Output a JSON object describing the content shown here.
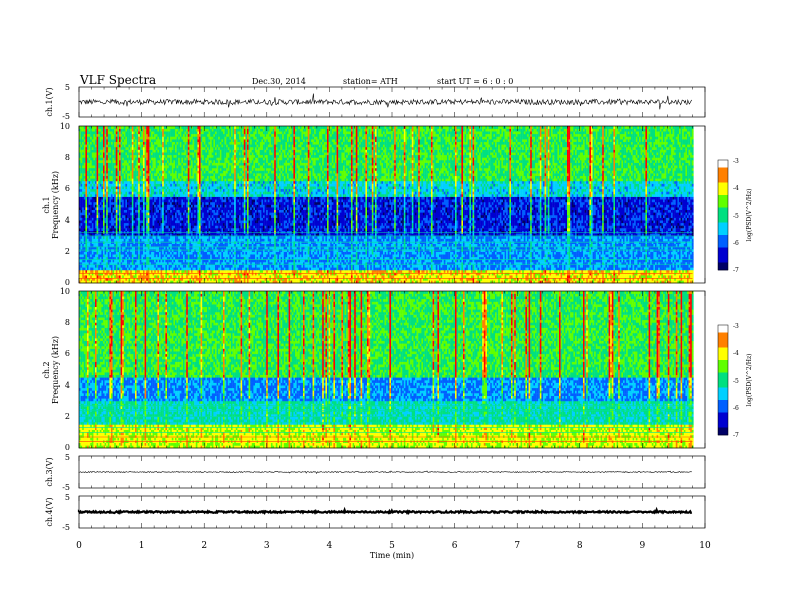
{
  "header": {
    "title": "VLF  Spectra",
    "date": "Dec.30, 2014",
    "station": "station= ATH",
    "start_ut": "start  UT  =    6  : 0  : 0"
  },
  "chart_data": [
    {
      "type": "line",
      "panel": "ch1-waveform",
      "ylabel": "ch.1(V)",
      "yticks": [
        "5",
        "-5"
      ],
      "ylim": [
        -5,
        5
      ],
      "xlim": [
        0,
        10
      ],
      "level": 0,
      "amplitude": 0.9,
      "data_end": 9.8
    },
    {
      "type": "heatmap",
      "panel": "ch1-spectrogram",
      "ylabel": "ch.1\nFrequency  (kHz)",
      "ylabel_lines": [
        "ch.1",
        "Frequency  (kHz)"
      ],
      "yticks": [
        "0",
        "2",
        "4",
        "6",
        "8",
        "10"
      ],
      "ylim": [
        0,
        10
      ],
      "xlim": [
        0,
        10
      ],
      "data_end": 9.8,
      "colorbar": {
        "label": "log(PSD(V^2/Hz)",
        "ticks": [
          "-3",
          "-4",
          "-5",
          "-6",
          "-7"
        ],
        "range": [
          -7,
          -3
        ]
      }
    },
    {
      "type": "heatmap",
      "panel": "ch2-spectrogram",
      "ylabel": "ch.2\nFrequency  (kHz)",
      "ylabel_lines": [
        "ch.2",
        "Frequency  (kHz)"
      ],
      "yticks": [
        "0",
        "2",
        "4",
        "6",
        "8",
        "10"
      ],
      "ylim": [
        0,
        10
      ],
      "xlim": [
        0,
        10
      ],
      "data_end": 9.8,
      "colorbar": {
        "label": "log(PSD(V^2/Hz)",
        "ticks": [
          "-3",
          "-4",
          "-5",
          "-6",
          "-7"
        ],
        "range": [
          -7,
          -3
        ]
      }
    },
    {
      "type": "line",
      "panel": "ch3-waveform",
      "ylabel": "ch.3(V)",
      "yticks": [
        "5",
        "-5"
      ],
      "ylim": [
        -5,
        5
      ],
      "xlim": [
        0,
        10
      ],
      "level": 0,
      "amplitude": 0.15,
      "data_end": 9.8
    },
    {
      "type": "line",
      "panel": "ch4-waveform",
      "ylabel": "ch.4(V)",
      "yticks": [
        "5",
        "-5"
      ],
      "ylim": [
        -5,
        5
      ],
      "xlim": [
        0,
        10
      ],
      "level": 0,
      "amplitude": 0.25,
      "data_end": 9.8
    }
  ],
  "x_axis": {
    "label": "Time  (min)",
    "ticks": [
      "0",
      "1",
      "2",
      "3",
      "4",
      "5",
      "6",
      "7",
      "8",
      "9",
      "10"
    ]
  },
  "colors": {
    "colormap": [
      "#000066",
      "#0000d0",
      "#0060ff",
      "#00d0ff",
      "#00e080",
      "#60ff00",
      "#ffff00",
      "#ff8000",
      "#ff0000",
      "#ffffff"
    ]
  }
}
